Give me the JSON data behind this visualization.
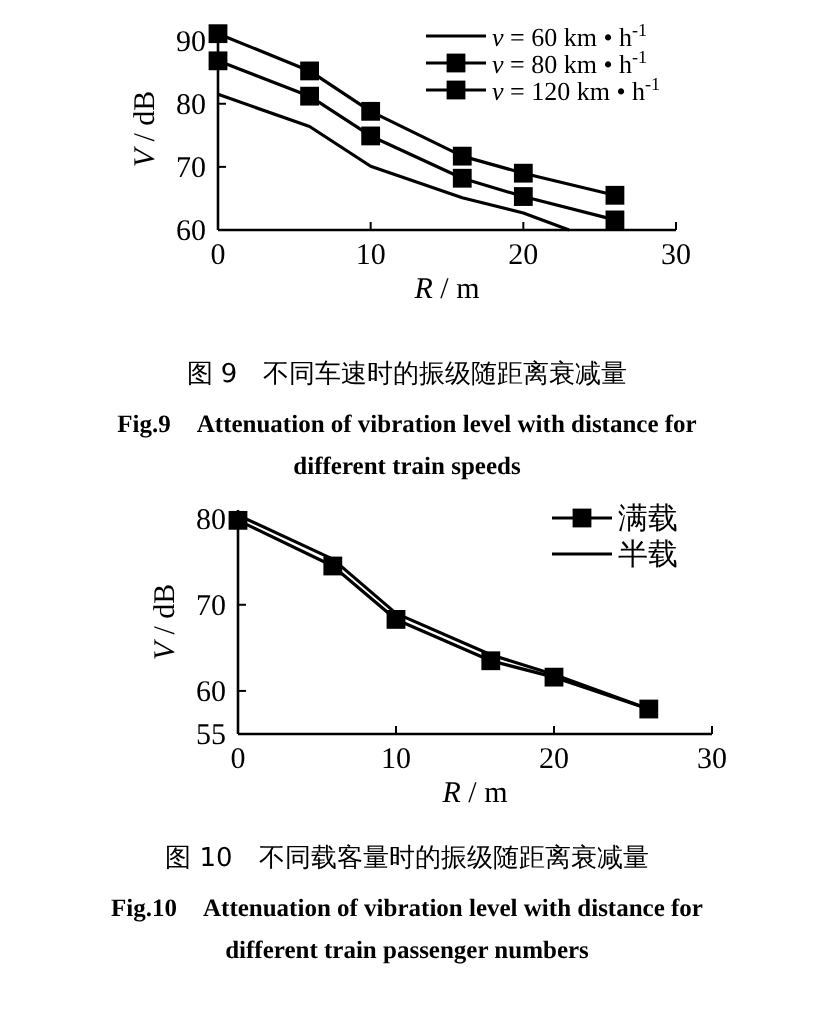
{
  "chart_data": [
    {
      "type": "line",
      "title": "图 9　不同车速时的振级随距离衰减量",
      "subtitle": "Fig.9　Attenuation of vibration level with distance for different train speeds",
      "xlabel": "*R* / m",
      "ylabel": "*V* / dB",
      "x": [
        0,
        6,
        10,
        16,
        20,
        26
      ],
      "xlim": [
        0,
        30
      ],
      "xticks": [
        0,
        10,
        20,
        30
      ],
      "ylim": [
        60,
        92
      ],
      "yticks": [
        60,
        70,
        80,
        90
      ],
      "legend": "top right",
      "grid": false,
      "series": [
        {
          "name": "*v* = 60 km • h$^{-1}$",
          "color": "#000000",
          "marker": "none",
          "x": [
            0,
            6,
            10,
            16,
            20,
            23
          ],
          "values": [
            81.5,
            76.4,
            70.1,
            65.1,
            62.7,
            60
          ]
        },
        {
          "name": "*v* = 80 km • h$^{-1}$",
          "color": "#000000",
          "marker": "square",
          "values": [
            86.8,
            81.2,
            74.9,
            68.2,
            65.3,
            61.6
          ]
        },
        {
          "name": "*v* = 120 km • h$^{-1}$",
          "color": "#000000",
          "marker": "square",
          "values": [
            91.1,
            85.2,
            78.8,
            71.7,
            69.0,
            65.5
          ]
        }
      ]
    },
    {
      "type": "line",
      "title": "图 10　不同载客量时的振级随距离衰减量",
      "subtitle": "Fig.10　Attenuation of vibration level with distance for different train passenger numbers",
      "xlabel": "*R* / m",
      "ylabel": "*V* / dB",
      "x": [
        0,
        6,
        10,
        16,
        20,
        26
      ],
      "xlim": [
        0,
        30
      ],
      "xticks": [
        0,
        10,
        20,
        30
      ],
      "ylim": [
        55,
        81
      ],
      "yticks": [
        55,
        60,
        70,
        80
      ],
      "legend": "top right",
      "grid": false,
      "series": [
        {
          "name": "满载",
          "color": "#000000",
          "marker": "square",
          "values": [
            79.8,
            74.5,
            68.3,
            63.5,
            61.6,
            57.9
          ]
        },
        {
          "name": "半载",
          "color": "#000000",
          "marker": "none",
          "values": [
            80.4,
            75.3,
            69.0,
            64.2,
            61.9,
            57.9
          ]
        }
      ]
    }
  ]
}
